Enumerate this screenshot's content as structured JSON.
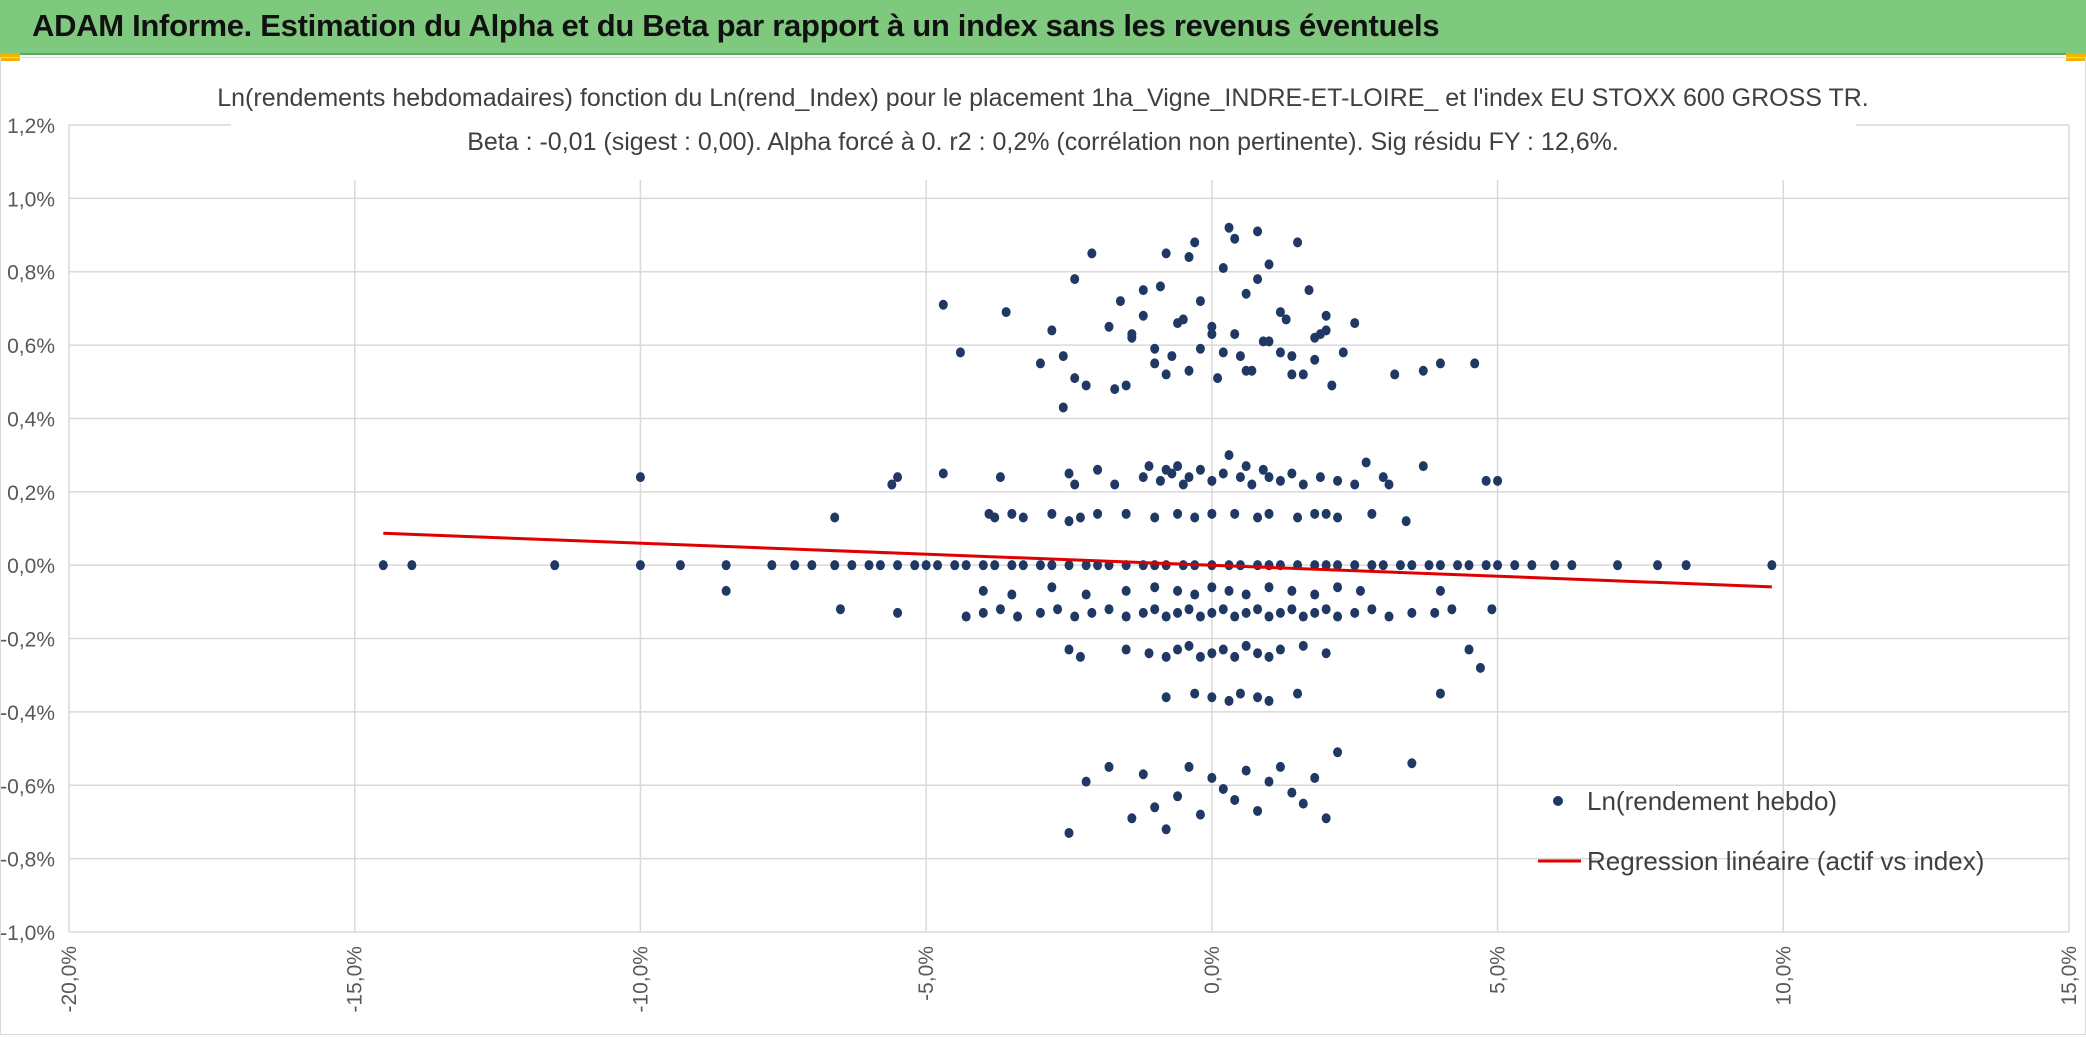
{
  "header": {
    "title": "ADAM Informe. Estimation du Alpha et du Beta par rapport à un index sans les revenus éventuels"
  },
  "colors": {
    "header_bg": "#7fc97f",
    "points": "#1f3864",
    "regression": "#e00000",
    "grid": "#d9d9d9"
  },
  "chart_data": {
    "type": "scatter",
    "title": "Ln(rendements hebdomadaires) fonction du Ln(rend_Index) pour le placement 1ha_Vigne_INDRE-ET-LOIRE_ et l'index EU STOXX 600 GROSS TR.",
    "subtitle": "Beta : -0,01 (sigest : 0,00). Alpha forcé à 0. r2 : 0,2% (corrélation non pertinente). Sig résidu FY : 12,6%.",
    "xlabel": "",
    "ylabel": "",
    "xlim": [
      -0.2,
      0.15
    ],
    "ylim": [
      -0.01,
      0.012
    ],
    "x_ticks": [
      -0.2,
      -0.15,
      -0.1,
      -0.05,
      0.0,
      0.05,
      0.1,
      0.15
    ],
    "x_tick_labels": [
      "-20,0%",
      "-15,0%",
      "-10,0%",
      "-5,0%",
      "0,0%",
      "5,0%",
      "10,0%",
      "15,0%"
    ],
    "y_ticks": [
      -0.01,
      -0.008,
      -0.006,
      -0.004,
      -0.002,
      0.0,
      0.002,
      0.004,
      0.006,
      0.008,
      0.01,
      0.012
    ],
    "y_tick_labels": [
      "-1,0%",
      "-0,8%",
      "-0,6%",
      "-0,4%",
      "-0,2%",
      "0,0%",
      "0,2%",
      "0,4%",
      "0,6%",
      "0,8%",
      "1,0%",
      "1,2%"
    ],
    "grid": true,
    "legend_position": "bottom-right",
    "series": [
      {
        "name": "Ln(rendement hebdo)",
        "kind": "scatter",
        "x": [
          -0.145,
          -0.14,
          -0.115,
          -0.1,
          -0.093,
          -0.085,
          -0.077,
          -0.073,
          -0.07,
          -0.066,
          -0.063,
          -0.06,
          -0.058,
          -0.055,
          -0.052,
          -0.05,
          -0.048,
          -0.045,
          -0.043,
          -0.04,
          -0.038,
          -0.035,
          -0.033,
          -0.03,
          -0.028,
          -0.025,
          -0.022,
          -0.02,
          -0.018,
          -0.015,
          -0.012,
          -0.01,
          -0.008,
          -0.005,
          -0.003,
          0.0,
          0.003,
          0.005,
          0.008,
          0.01,
          0.012,
          0.015,
          0.018,
          0.02,
          0.022,
          0.025,
          0.028,
          0.03,
          0.033,
          0.035,
          0.038,
          0.04,
          0.043,
          0.045,
          0.048,
          0.05,
          0.053,
          0.056,
          0.06,
          0.063,
          0.071,
          0.078,
          0.083,
          0.098,
          -0.1,
          -0.056,
          -0.055,
          -0.047,
          -0.037,
          -0.025,
          -0.024,
          -0.02,
          -0.017,
          -0.012,
          -0.011,
          -0.009,
          -0.008,
          -0.007,
          -0.006,
          -0.005,
          -0.004,
          -0.002,
          0.0,
          0.002,
          0.003,
          0.005,
          0.006,
          0.007,
          0.009,
          0.01,
          0.012,
          0.014,
          0.016,
          0.019,
          0.022,
          0.025,
          0.027,
          0.03,
          0.031,
          0.037,
          0.048,
          0.05,
          -0.066,
          -0.039,
          -0.038,
          -0.035,
          -0.033,
          -0.028,
          -0.025,
          -0.023,
          -0.02,
          -0.015,
          -0.01,
          -0.006,
          -0.003,
          0.0,
          0.004,
          0.008,
          0.01,
          0.015,
          0.018,
          0.02,
          0.022,
          0.028,
          0.034,
          -0.085,
          -0.04,
          -0.035,
          -0.028,
          -0.022,
          -0.015,
          -0.01,
          -0.006,
          -0.003,
          0.0,
          0.003,
          0.006,
          0.01,
          0.014,
          0.018,
          0.022,
          0.026,
          0.04,
          -0.065,
          -0.055,
          -0.043,
          -0.04,
          -0.037,
          -0.034,
          -0.03,
          -0.027,
          -0.024,
          -0.021,
          -0.018,
          -0.015,
          -0.012,
          -0.01,
          -0.008,
          -0.006,
          -0.004,
          -0.002,
          0.0,
          0.002,
          0.004,
          0.006,
          0.008,
          0.01,
          0.012,
          0.014,
          0.016,
          0.018,
          0.02,
          0.022,
          0.025,
          0.028,
          0.031,
          0.035,
          0.039,
          0.042,
          0.049,
          -0.025,
          -0.023,
          -0.015,
          -0.011,
          -0.008,
          -0.006,
          -0.004,
          -0.002,
          0.0,
          0.002,
          0.004,
          0.006,
          0.008,
          0.01,
          0.012,
          0.016,
          0.02,
          0.045,
          0.047,
          -0.008,
          -0.003,
          0.0,
          0.003,
          0.005,
          0.008,
          0.01,
          0.015,
          0.04,
          -0.047,
          -0.044,
          -0.036,
          -0.03,
          -0.028,
          -0.026,
          -0.024,
          -0.022,
          -0.021,
          -0.018,
          -0.016,
          -0.015,
          -0.014,
          -0.012,
          -0.01,
          -0.009,
          -0.008,
          -0.007,
          -0.005,
          -0.004,
          -0.003,
          -0.002,
          0.0,
          0.001,
          0.002,
          0.003,
          0.004,
          0.005,
          0.006,
          0.007,
          0.008,
          0.009,
          0.01,
          0.012,
          0.013,
          0.014,
          0.015,
          0.017,
          0.018,
          0.019,
          0.02,
          0.021,
          0.023,
          0.025,
          0.032,
          0.037,
          0.04,
          0.046,
          -0.025,
          -0.022,
          -0.018,
          -0.014,
          -0.012,
          -0.01,
          -0.008,
          -0.006,
          -0.004,
          -0.002,
          0.0,
          0.002,
          0.004,
          0.006,
          0.008,
          0.01,
          0.012,
          0.014,
          0.016,
          0.018,
          0.02,
          0.022,
          0.035,
          -0.026,
          -0.024,
          -0.017,
          -0.014,
          -0.012,
          -0.01,
          -0.008,
          -0.006,
          -0.004,
          -0.002,
          0.0,
          0.002,
          0.004,
          0.006,
          0.008,
          0.01,
          0.012,
          0.014,
          0.016,
          0.018,
          0.02
        ],
        "y": [
          0.0,
          0.0,
          0.0,
          0.0,
          0.0,
          0.0,
          0.0,
          0.0,
          0.0,
          0.0,
          0.0,
          0.0,
          0.0,
          0.0,
          0.0,
          0.0,
          0.0,
          0.0,
          0.0,
          0.0,
          0.0,
          0.0,
          0.0,
          0.0,
          0.0,
          0.0,
          0.0,
          0.0,
          0.0,
          0.0,
          0.0,
          0.0,
          0.0,
          0.0,
          0.0,
          0.0,
          0.0,
          0.0,
          0.0,
          0.0,
          0.0,
          0.0,
          0.0,
          0.0,
          0.0,
          0.0,
          0.0,
          0.0,
          0.0,
          0.0,
          0.0,
          0.0,
          0.0,
          0.0,
          0.0,
          0.0,
          0.0,
          0.0,
          0.0,
          0.0,
          0.0,
          0.0,
          0.0,
          0.0,
          0.0024,
          0.0022,
          0.0024,
          0.0025,
          0.0024,
          0.0025,
          0.0022,
          0.0026,
          0.0022,
          0.0024,
          0.0027,
          0.0023,
          0.0026,
          0.0025,
          0.0027,
          0.0022,
          0.0024,
          0.0026,
          0.0023,
          0.0025,
          0.003,
          0.0024,
          0.0027,
          0.0022,
          0.0026,
          0.0024,
          0.0023,
          0.0025,
          0.0022,
          0.0024,
          0.0023,
          0.0022,
          0.0028,
          0.0024,
          0.0022,
          0.0027,
          0.0023,
          0.0023,
          0.0013,
          0.0014,
          0.0013,
          0.0014,
          0.0013,
          0.0014,
          0.0012,
          0.0013,
          0.0014,
          0.0014,
          0.0013,
          0.0014,
          0.0013,
          0.0014,
          0.0014,
          0.0013,
          0.0014,
          0.0013,
          0.0014,
          0.0014,
          0.0013,
          0.0014,
          0.0012,
          -0.0007,
          -0.0007,
          -0.0008,
          -0.0006,
          -0.0008,
          -0.0007,
          -0.0006,
          -0.0007,
          -0.0008,
          -0.0006,
          -0.0007,
          -0.0008,
          -0.0006,
          -0.0007,
          -0.0008,
          -0.0006,
          -0.0007,
          -0.0007,
          -0.0012,
          -0.0013,
          -0.0014,
          -0.0013,
          -0.0012,
          -0.0014,
          -0.0013,
          -0.0012,
          -0.0014,
          -0.0013,
          -0.0012,
          -0.0014,
          -0.0013,
          -0.0012,
          -0.0014,
          -0.0013,
          -0.0012,
          -0.0014,
          -0.0013,
          -0.0012,
          -0.0014,
          -0.0013,
          -0.0012,
          -0.0014,
          -0.0013,
          -0.0012,
          -0.0014,
          -0.0013,
          -0.0012,
          -0.0014,
          -0.0013,
          -0.0012,
          -0.0014,
          -0.0013,
          -0.0013,
          -0.0012,
          -0.0012,
          -0.0023,
          -0.0025,
          -0.0023,
          -0.0024,
          -0.0025,
          -0.0023,
          -0.0022,
          -0.0025,
          -0.0024,
          -0.0023,
          -0.0025,
          -0.0022,
          -0.0024,
          -0.0025,
          -0.0023,
          -0.0022,
          -0.0024,
          -0.0023,
          -0.0028,
          -0.0036,
          -0.0035,
          -0.0036,
          -0.0037,
          -0.0035,
          -0.0036,
          -0.0037,
          -0.0035,
          -0.0035,
          0.0071,
          0.0058,
          0.0069,
          0.0055,
          0.0064,
          0.0043,
          0.0078,
          0.0049,
          0.0085,
          0.0065,
          0.0072,
          0.0049,
          0.0063,
          0.0068,
          0.0055,
          0.0076,
          0.0085,
          0.0057,
          0.0067,
          0.0053,
          0.0088,
          0.0059,
          0.0065,
          0.0051,
          0.0081,
          0.0092,
          0.0063,
          0.0057,
          0.0074,
          0.0053,
          0.0091,
          0.0061,
          0.0082,
          0.0058,
          0.0067,
          0.0052,
          0.0088,
          0.0075,
          0.0056,
          0.0063,
          0.0068,
          0.0049,
          0.0058,
          0.0066,
          0.0052,
          0.0053,
          0.0055,
          0.0055,
          -0.0073,
          -0.0059,
          -0.0055,
          -0.0069,
          -0.0057,
          -0.0066,
          -0.0072,
          -0.0063,
          -0.0055,
          -0.0068,
          -0.0058,
          -0.0061,
          -0.0064,
          -0.0056,
          -0.0067,
          -0.0059,
          -0.0055,
          -0.0062,
          -0.0065,
          -0.0058,
          -0.0069,
          -0.0051,
          -0.0054,
          0.0057,
          0.0051,
          0.0048,
          0.0062,
          0.0075,
          0.0059,
          0.0052,
          0.0066,
          0.0084,
          0.0072,
          0.0063,
          0.0058,
          0.0089,
          0.0053,
          0.0078,
          0.0061,
          0.0069,
          0.0057,
          0.0052,
          0.0062,
          0.0064
        ]
      },
      {
        "name": "Regression linéaire (actif vs index)",
        "kind": "line",
        "x": [
          -0.145,
          0.098
        ],
        "y": [
          0.00087,
          -0.00059
        ]
      }
    ]
  }
}
